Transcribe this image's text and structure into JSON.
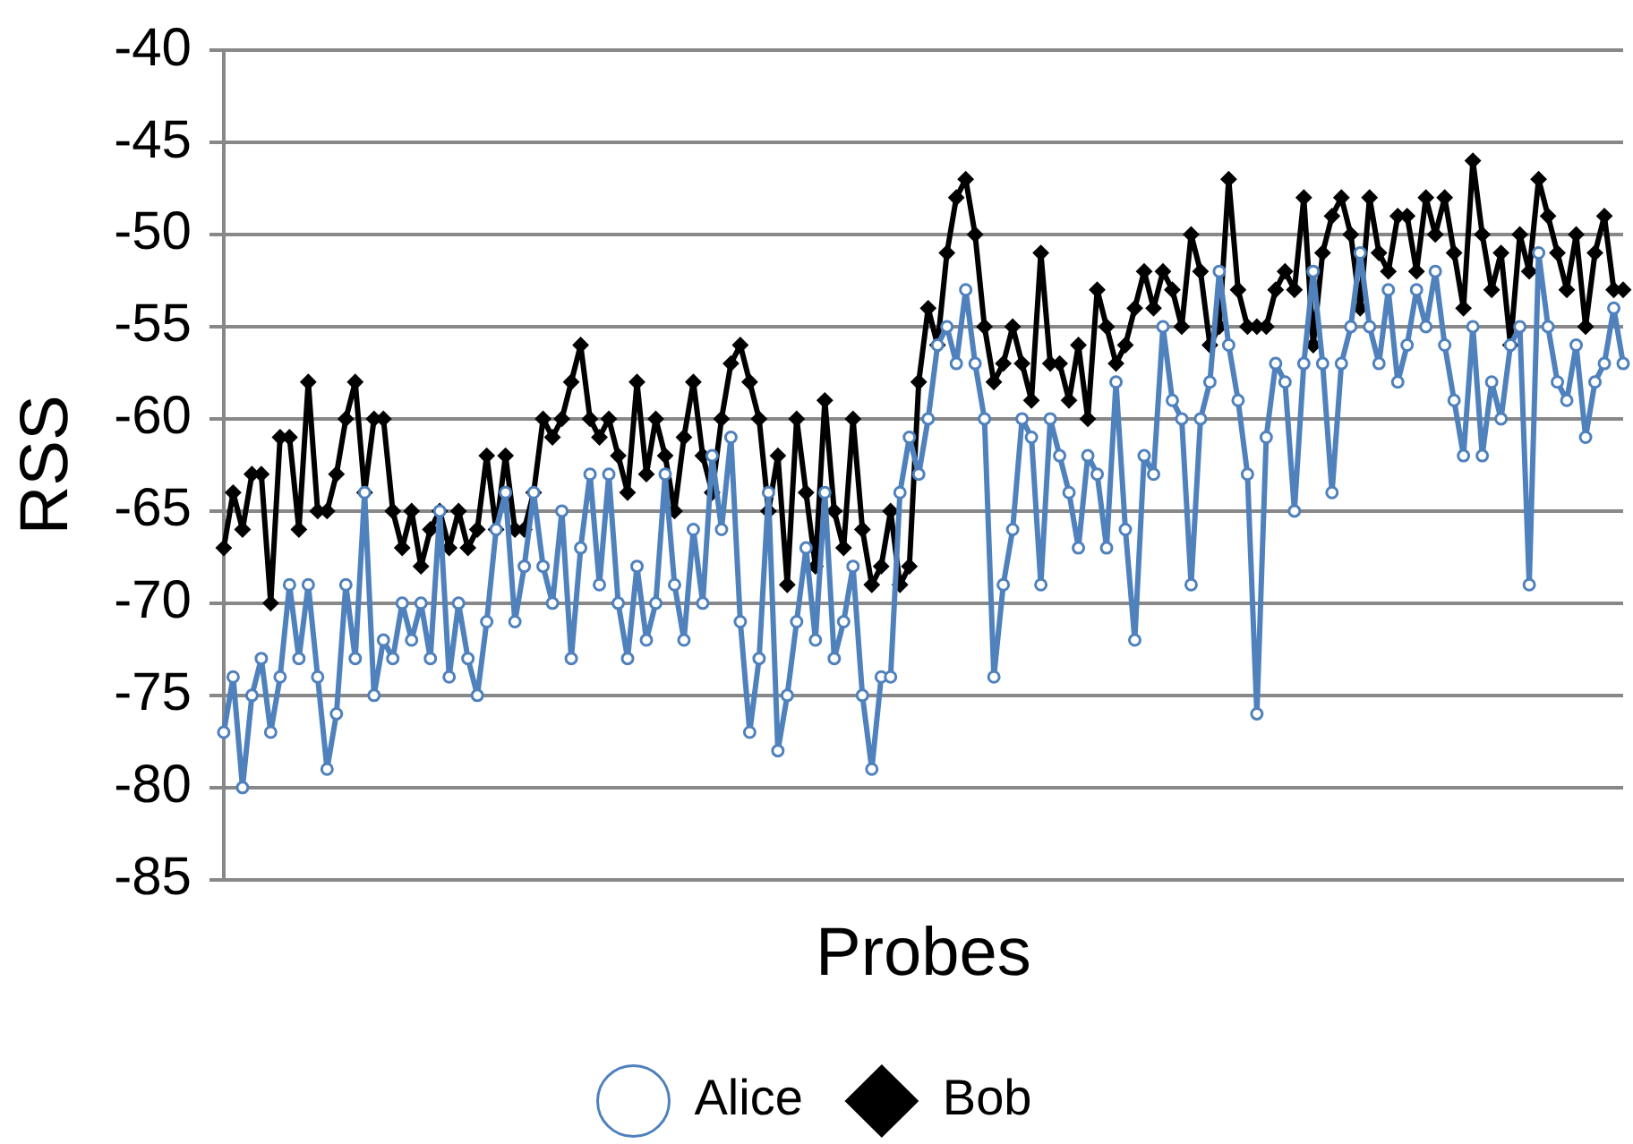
{
  "chart_data": {
    "type": "line",
    "xlabel": "Probes",
    "ylabel": "RSS",
    "ylim": [
      -85,
      -40
    ],
    "yticks": [
      -85,
      -80,
      -75,
      -70,
      -65,
      -60,
      -55,
      -50,
      -45,
      -40
    ],
    "grid": "y",
    "legend": "bottom",
    "tick_labels": "y",
    "categories": [
      null,
      null,
      null,
      null,
      null,
      null,
      null,
      null,
      null,
      null,
      null,
      null,
      null,
      null,
      null,
      null,
      null,
      null,
      null,
      null,
      null,
      null,
      null,
      null,
      null,
      null,
      null,
      null,
      null,
      null,
      null,
      null,
      null,
      null,
      null,
      null,
      null,
      null,
      null,
      null,
      null,
      null,
      null,
      null,
      null,
      null,
      null,
      null,
      null,
      null,
      null,
      null,
      null,
      null,
      null,
      null,
      null,
      null,
      null,
      null,
      null,
      null,
      null,
      null,
      null,
      null,
      null,
      null,
      null,
      null,
      null,
      null,
      null,
      null,
      null,
      null,
      null,
      null,
      null,
      null,
      null,
      null,
      null,
      null,
      null,
      null,
      null,
      null,
      null,
      null,
      null,
      null,
      null,
      null,
      null,
      null,
      null,
      null,
      null,
      null,
      null,
      null,
      null,
      null,
      null,
      null,
      null,
      null,
      null,
      null,
      null,
      null,
      null,
      null,
      null,
      null,
      null,
      null,
      null,
      null,
      null,
      null,
      null,
      null,
      null,
      null,
      null,
      null,
      null,
      null,
      null,
      null,
      null,
      null,
      null,
      null,
      null,
      null,
      null,
      null,
      null,
      null,
      null,
      null,
      null,
      null,
      null,
      null,
      null,
      null
    ],
    "series": [
      {
        "name": "Alice",
        "color": "#4f81bd",
        "marker": "circle",
        "values": [
          -77,
          -74,
          -80,
          -75,
          -73,
          -77,
          -74,
          -69,
          -73,
          -69,
          -74,
          -79,
          -76,
          -69,
          -73,
          -64,
          -75,
          -72,
          -73,
          -70,
          -72,
          -70,
          -73,
          -65,
          -74,
          -70,
          -73,
          -75,
          -71,
          -66,
          -64,
          -71,
          -68,
          -64,
          -68,
          -70,
          -65,
          -73,
          -67,
          -63,
          -69,
          -63,
          -70,
          -73,
          -68,
          -72,
          -70,
          -63,
          -69,
          -72,
          -66,
          -70,
          -62,
          -66,
          -61,
          -71,
          -77,
          -73,
          -64,
          -78,
          -75,
          -71,
          -67,
          -72,
          -64,
          -73,
          -71,
          -68,
          -75,
          -79,
          -74,
          -74,
          -64,
          -61,
          -63,
          -60,
          -56,
          -55,
          -57,
          -53,
          -57,
          -60,
          -74,
          -69,
          -66,
          -60,
          -61,
          -69,
          -60,
          -62,
          -64,
          -67,
          -62,
          -63,
          -67,
          -58,
          -66,
          -72,
          -62,
          -63,
          -55,
          -59,
          -60,
          -69,
          -60,
          -58,
          -52,
          -56,
          -59,
          -63,
          -76,
          -61,
          -57,
          -58,
          -65,
          -57,
          -52,
          -57,
          -64,
          -57,
          -55,
          -51,
          -55,
          -57,
          -53,
          -58,
          -56,
          -53,
          -55,
          -52,
          -56,
          -59,
          -62,
          -55,
          -62,
          -58,
          -60,
          -56,
          -55,
          -69,
          -51,
          -55,
          -58,
          -59,
          -56,
          -61,
          -58,
          -57,
          -54,
          -57
        ]
      },
      {
        "name": "Bob",
        "color": "#000000",
        "marker": "diamond",
        "values": [
          -67,
          -64,
          -66,
          -63,
          -63,
          -70,
          -61,
          -61,
          -66,
          -58,
          -65,
          -65,
          -63,
          -60,
          -58,
          -64,
          -60,
          -60,
          -65,
          -67,
          -65,
          -68,
          -66,
          -65,
          -67,
          -65,
          -67,
          -66,
          -62,
          -66,
          -62,
          -66,
          -66,
          -64,
          -60,
          -61,
          -60,
          -58,
          -56,
          -60,
          -61,
          -60,
          -62,
          -64,
          -58,
          -63,
          -60,
          -62,
          -65,
          -61,
          -58,
          -62,
          -64,
          -60,
          -57,
          -56,
          -58,
          -60,
          -65,
          -62,
          -69,
          -60,
          -64,
          -68,
          -59,
          -65,
          -67,
          -60,
          -66,
          -69,
          -68,
          -65,
          -69,
          -68,
          -58,
          -54,
          -56,
          -51,
          -48,
          -47,
          -50,
          -55,
          -58,
          -57,
          -55,
          -57,
          -59,
          -51,
          -57,
          -57,
          -59,
          -56,
          -60,
          -53,
          -55,
          -57,
          -56,
          -54,
          -52,
          -54,
          -52,
          -53,
          -55,
          -50,
          -52,
          -56,
          -55,
          -47,
          -53,
          -55,
          -55,
          -55,
          -53,
          -52,
          -53,
          -48,
          -56,
          -51,
          -49,
          -48,
          -50,
          -54,
          -48,
          -51,
          -52,
          -49,
          -49,
          -52,
          -48,
          -50,
          -48,
          -51,
          -54,
          -46,
          -50,
          -53,
          -51,
          -56,
          -50,
          -52,
          -47,
          -49,
          -51,
          -53,
          -50,
          -55,
          -51,
          -49,
          -53,
          -53
        ]
      }
    ]
  }
}
